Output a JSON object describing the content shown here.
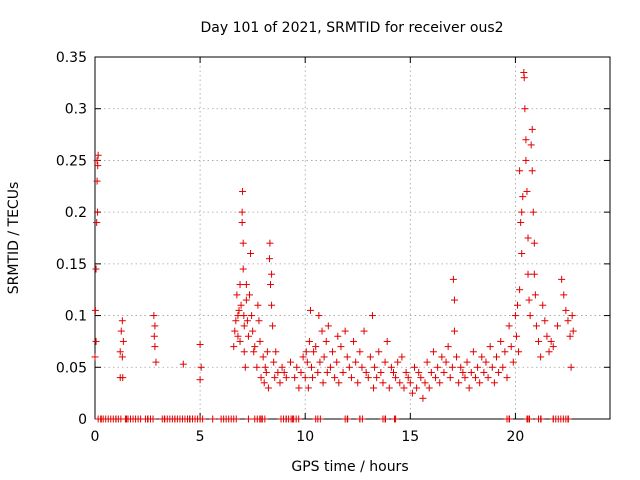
{
  "chart_data": {
    "type": "scatter",
    "title": "Day 101 of 2021, SRMTID for receiver ous2",
    "xlabel": "GPS time / hours",
    "ylabel": "SRMTID / TECUs",
    "xlim": [
      0,
      24.5
    ],
    "ylim": [
      0,
      0.35
    ],
    "xticks": [
      0,
      5,
      10,
      15,
      20
    ],
    "xtick_labels": [
      "0",
      "5",
      "10",
      "15",
      "20"
    ],
    "yticks": [
      0,
      0.05,
      0.1,
      0.15,
      0.2,
      0.25,
      0.3,
      0.35
    ],
    "ytick_labels": [
      "0",
      "0.05",
      "0.1",
      "0.15",
      "0.2",
      "0.25",
      "0.3",
      "0.35"
    ],
    "grid": true,
    "marker": "+",
    "color": "#e00000",
    "series": [
      {
        "name": "SRMTID",
        "points": [
          [
            0.0,
            0.06
          ],
          [
            0.02,
            0.105
          ],
          [
            0.05,
            0.145
          ],
          [
            0.05,
            0.075
          ],
          [
            0.08,
            0.19
          ],
          [
            0.1,
            0.23
          ],
          [
            0.1,
            0.25
          ],
          [
            0.12,
            0.2
          ],
          [
            0.13,
            0.245
          ],
          [
            0.15,
            0.255
          ],
          [
            1.2,
            0.04
          ],
          [
            1.2,
            0.065
          ],
          [
            1.25,
            0.085
          ],
          [
            1.3,
            0.095
          ],
          [
            1.3,
            0.06
          ],
          [
            1.32,
            0.04
          ],
          [
            1.35,
            0.075
          ],
          [
            2.8,
            0.1
          ],
          [
            2.82,
            0.08
          ],
          [
            2.85,
            0.09
          ],
          [
            2.85,
            0.07
          ],
          [
            2.9,
            0.055
          ],
          [
            4.2,
            0.053
          ],
          [
            5.0,
            0.072
          ],
          [
            5.0,
            0.038
          ],
          [
            5.05,
            0.05
          ],
          [
            6.6,
            0.07
          ],
          [
            6.65,
            0.085
          ],
          [
            6.7,
            0.095
          ],
          [
            6.75,
            0.12
          ],
          [
            6.8,
            0.1
          ],
          [
            6.8,
            0.08
          ],
          [
            6.85,
            0.105
          ],
          [
            6.9,
            0.13
          ],
          [
            6.9,
            0.075
          ],
          [
            6.95,
            0.11
          ],
          [
            7.0,
            0.19
          ],
          [
            7.0,
            0.2
          ],
          [
            7.02,
            0.22
          ],
          [
            7.05,
            0.17
          ],
          [
            7.05,
            0.145
          ],
          [
            7.08,
            0.1
          ],
          [
            7.1,
            0.09
          ],
          [
            7.1,
            0.065
          ],
          [
            7.15,
            0.05
          ],
          [
            7.2,
            0.115
          ],
          [
            7.2,
            0.13
          ],
          [
            7.25,
            0.095
          ],
          [
            7.3,
            0.08
          ],
          [
            7.35,
            0.12
          ],
          [
            7.4,
            0.16
          ],
          [
            7.45,
            0.1
          ],
          [
            7.5,
            0.085
          ],
          [
            7.55,
            0.065
          ],
          [
            7.6,
            0.07
          ],
          [
            7.7,
            0.05
          ],
          [
            7.75,
            0.11
          ],
          [
            7.8,
            0.095
          ],
          [
            7.85,
            0.075
          ],
          [
            7.9,
            0.04
          ],
          [
            8.0,
            0.06
          ],
          [
            8.05,
            0.035
          ],
          [
            8.1,
            0.05
          ],
          [
            8.15,
            0.045
          ],
          [
            8.2,
            0.065
          ],
          [
            8.25,
            0.03
          ],
          [
            8.3,
            0.155
          ],
          [
            8.32,
            0.17
          ],
          [
            8.35,
            0.13
          ],
          [
            8.4,
            0.14
          ],
          [
            8.4,
            0.11
          ],
          [
            8.45,
            0.09
          ],
          [
            8.5,
            0.055
          ],
          [
            8.55,
            0.04
          ],
          [
            8.6,
            0.065
          ],
          [
            8.7,
            0.045
          ],
          [
            8.8,
            0.035
          ],
          [
            8.9,
            0.05
          ],
          [
            9.0,
            0.045
          ],
          [
            9.1,
            0.04
          ],
          [
            9.3,
            0.055
          ],
          [
            9.5,
            0.04
          ],
          [
            9.6,
            0.05
          ],
          [
            9.7,
            0.03
          ],
          [
            9.8,
            0.045
          ],
          [
            9.9,
            0.06
          ],
          [
            10.0,
            0.04
          ],
          [
            10.05,
            0.065
          ],
          [
            10.1,
            0.055
          ],
          [
            10.15,
            0.03
          ],
          [
            10.2,
            0.075
          ],
          [
            10.25,
            0.105
          ],
          [
            10.3,
            0.05
          ],
          [
            10.35,
            0.04
          ],
          [
            10.4,
            0.065
          ],
          [
            10.5,
            0.07
          ],
          [
            10.6,
            0.045
          ],
          [
            10.65,
            0.1
          ],
          [
            10.7,
            0.055
          ],
          [
            10.8,
            0.085
          ],
          [
            10.85,
            0.035
          ],
          [
            10.9,
            0.06
          ],
          [
            11.0,
            0.075
          ],
          [
            11.05,
            0.045
          ],
          [
            11.1,
            0.09
          ],
          [
            11.2,
            0.05
          ],
          [
            11.3,
            0.065
          ],
          [
            11.4,
            0.04
          ],
          [
            11.5,
            0.055
          ],
          [
            11.55,
            0.08
          ],
          [
            11.6,
            0.035
          ],
          [
            11.7,
            0.07
          ],
          [
            11.8,
            0.045
          ],
          [
            11.9,
            0.085
          ],
          [
            12.0,
            0.06
          ],
          [
            12.1,
            0.05
          ],
          [
            12.2,
            0.04
          ],
          [
            12.3,
            0.075
          ],
          [
            12.4,
            0.055
          ],
          [
            12.5,
            0.035
          ],
          [
            12.6,
            0.065
          ],
          [
            12.7,
            0.05
          ],
          [
            12.8,
            0.085
          ],
          [
            12.9,
            0.045
          ],
          [
            13.0,
            0.04
          ],
          [
            13.1,
            0.06
          ],
          [
            13.2,
            0.1
          ],
          [
            13.25,
            0.03
          ],
          [
            13.3,
            0.05
          ],
          [
            13.4,
            0.04
          ],
          [
            13.5,
            0.065
          ],
          [
            13.6,
            0.045
          ],
          [
            13.7,
            0.035
          ],
          [
            13.8,
            0.055
          ],
          [
            13.9,
            0.075
          ],
          [
            14.0,
            0.03
          ],
          [
            14.1,
            0.05
          ],
          [
            14.2,
            0.045
          ],
          [
            14.3,
            0.04
          ],
          [
            14.4,
            0.055
          ],
          [
            14.5,
            0.035
          ],
          [
            14.6,
            0.06
          ],
          [
            14.7,
            0.03
          ],
          [
            14.8,
            0.045
          ],
          [
            14.9,
            0.04
          ],
          [
            15.0,
            0.035
          ],
          [
            15.1,
            0.025
          ],
          [
            15.2,
            0.05
          ],
          [
            15.3,
            0.03
          ],
          [
            15.4,
            0.045
          ],
          [
            15.5,
            0.04
          ],
          [
            15.6,
            0.02
          ],
          [
            15.7,
            0.035
          ],
          [
            15.8,
            0.055
          ],
          [
            15.9,
            0.03
          ],
          [
            16.0,
            0.045
          ],
          [
            16.1,
            0.065
          ],
          [
            16.2,
            0.04
          ],
          [
            16.3,
            0.05
          ],
          [
            16.4,
            0.035
          ],
          [
            16.5,
            0.06
          ],
          [
            16.6,
            0.045
          ],
          [
            16.7,
            0.055
          ],
          [
            16.8,
            0.07
          ],
          [
            16.9,
            0.04
          ],
          [
            17.0,
            0.05
          ],
          [
            17.05,
            0.135
          ],
          [
            17.1,
            0.115
          ],
          [
            17.1,
            0.085
          ],
          [
            17.2,
            0.06
          ],
          [
            17.3,
            0.035
          ],
          [
            17.4,
            0.05
          ],
          [
            17.5,
            0.045
          ],
          [
            17.6,
            0.04
          ],
          [
            17.7,
            0.055
          ],
          [
            17.8,
            0.03
          ],
          [
            17.9,
            0.045
          ],
          [
            18.0,
            0.065
          ],
          [
            18.1,
            0.04
          ],
          [
            18.2,
            0.05
          ],
          [
            18.3,
            0.035
          ],
          [
            18.4,
            0.06
          ],
          [
            18.5,
            0.045
          ],
          [
            18.6,
            0.055
          ],
          [
            18.7,
            0.04
          ],
          [
            18.8,
            0.07
          ],
          [
            18.9,
            0.05
          ],
          [
            19.0,
            0.035
          ],
          [
            19.1,
            0.06
          ],
          [
            19.2,
            0.045
          ],
          [
            19.3,
            0.075
          ],
          [
            19.4,
            0.05
          ],
          [
            19.5,
            0.065
          ],
          [
            19.6,
            0.04
          ],
          [
            19.7,
            0.09
          ],
          [
            19.8,
            0.07
          ],
          [
            19.9,
            0.055
          ],
          [
            20.0,
            0.1
          ],
          [
            20.05,
            0.08
          ],
          [
            20.1,
            0.11
          ],
          [
            20.15,
            0.065
          ],
          [
            20.2,
            0.125
          ],
          [
            20.2,
            0.24
          ],
          [
            20.25,
            0.19
          ],
          [
            20.3,
            0.2
          ],
          [
            20.3,
            0.16
          ],
          [
            20.35,
            0.215
          ],
          [
            20.4,
            0.335
          ],
          [
            20.42,
            0.33
          ],
          [
            20.45,
            0.3
          ],
          [
            20.5,
            0.27
          ],
          [
            20.5,
            0.25
          ],
          [
            20.55,
            0.22
          ],
          [
            20.6,
            0.175
          ],
          [
            20.6,
            0.14
          ],
          [
            20.65,
            0.115
          ],
          [
            20.7,
            0.1
          ],
          [
            20.75,
            0.265
          ],
          [
            20.8,
            0.28
          ],
          [
            20.8,
            0.24
          ],
          [
            20.85,
            0.2
          ],
          [
            20.9,
            0.17
          ],
          [
            20.9,
            0.14
          ],
          [
            20.95,
            0.12
          ],
          [
            21.0,
            0.09
          ],
          [
            21.1,
            0.075
          ],
          [
            21.2,
            0.06
          ],
          [
            21.3,
            0.11
          ],
          [
            21.4,
            0.095
          ],
          [
            21.5,
            0.08
          ],
          [
            21.6,
            0.065
          ],
          [
            21.7,
            0.075
          ],
          [
            21.8,
            0.07
          ],
          [
            22.0,
            0.09
          ],
          [
            22.2,
            0.135
          ],
          [
            22.3,
            0.12
          ],
          [
            22.4,
            0.105
          ],
          [
            22.5,
            0.095
          ],
          [
            22.6,
            0.08
          ],
          [
            22.65,
            0.05
          ],
          [
            22.7,
            0.1
          ],
          [
            22.75,
            0.085
          ],
          [
            0.3,
            0.0
          ],
          [
            1.0,
            0.0
          ],
          [
            1.5,
            0.0
          ],
          [
            2.5,
            0.0
          ],
          [
            3.3,
            0.0
          ],
          [
            3.8,
            0.0
          ],
          [
            4.5,
            0.0
          ],
          [
            5.6,
            0.0
          ],
          [
            7.3,
            0.0
          ],
          [
            7.9,
            0.0
          ],
          [
            9.1,
            0.0
          ],
          [
            9.4,
            0.0
          ],
          [
            10.5,
            0.0
          ],
          [
            12.0,
            0.0
          ],
          [
            12.6,
            0.0
          ],
          [
            13.8,
            0.0
          ],
          [
            14.3,
            0.0
          ],
          [
            19.7,
            0.0
          ],
          [
            20.6,
            0.0
          ],
          [
            21.2,
            0.0
          ],
          [
            21.8,
            0.0
          ],
          [
            22.5,
            0.0
          ]
        ],
        "zero_ranges": [
          [
            0.15,
            1.3
          ],
          [
            1.45,
            2.2
          ],
          [
            2.4,
            2.8
          ],
          [
            3.2,
            5.2
          ],
          [
            6.0,
            6.8
          ],
          [
            7.6,
            8.1
          ],
          [
            8.85,
            9.7
          ],
          [
            10.6,
            10.8
          ],
          [
            11.9,
            12.05
          ],
          [
            12.6,
            12.75
          ],
          [
            13.7,
            13.85
          ],
          [
            14.25,
            14.35
          ],
          [
            19.6,
            19.75
          ],
          [
            20.55,
            20.75
          ],
          [
            21.1,
            21.3
          ],
          [
            21.8,
            22.6
          ]
        ]
      }
    ]
  }
}
